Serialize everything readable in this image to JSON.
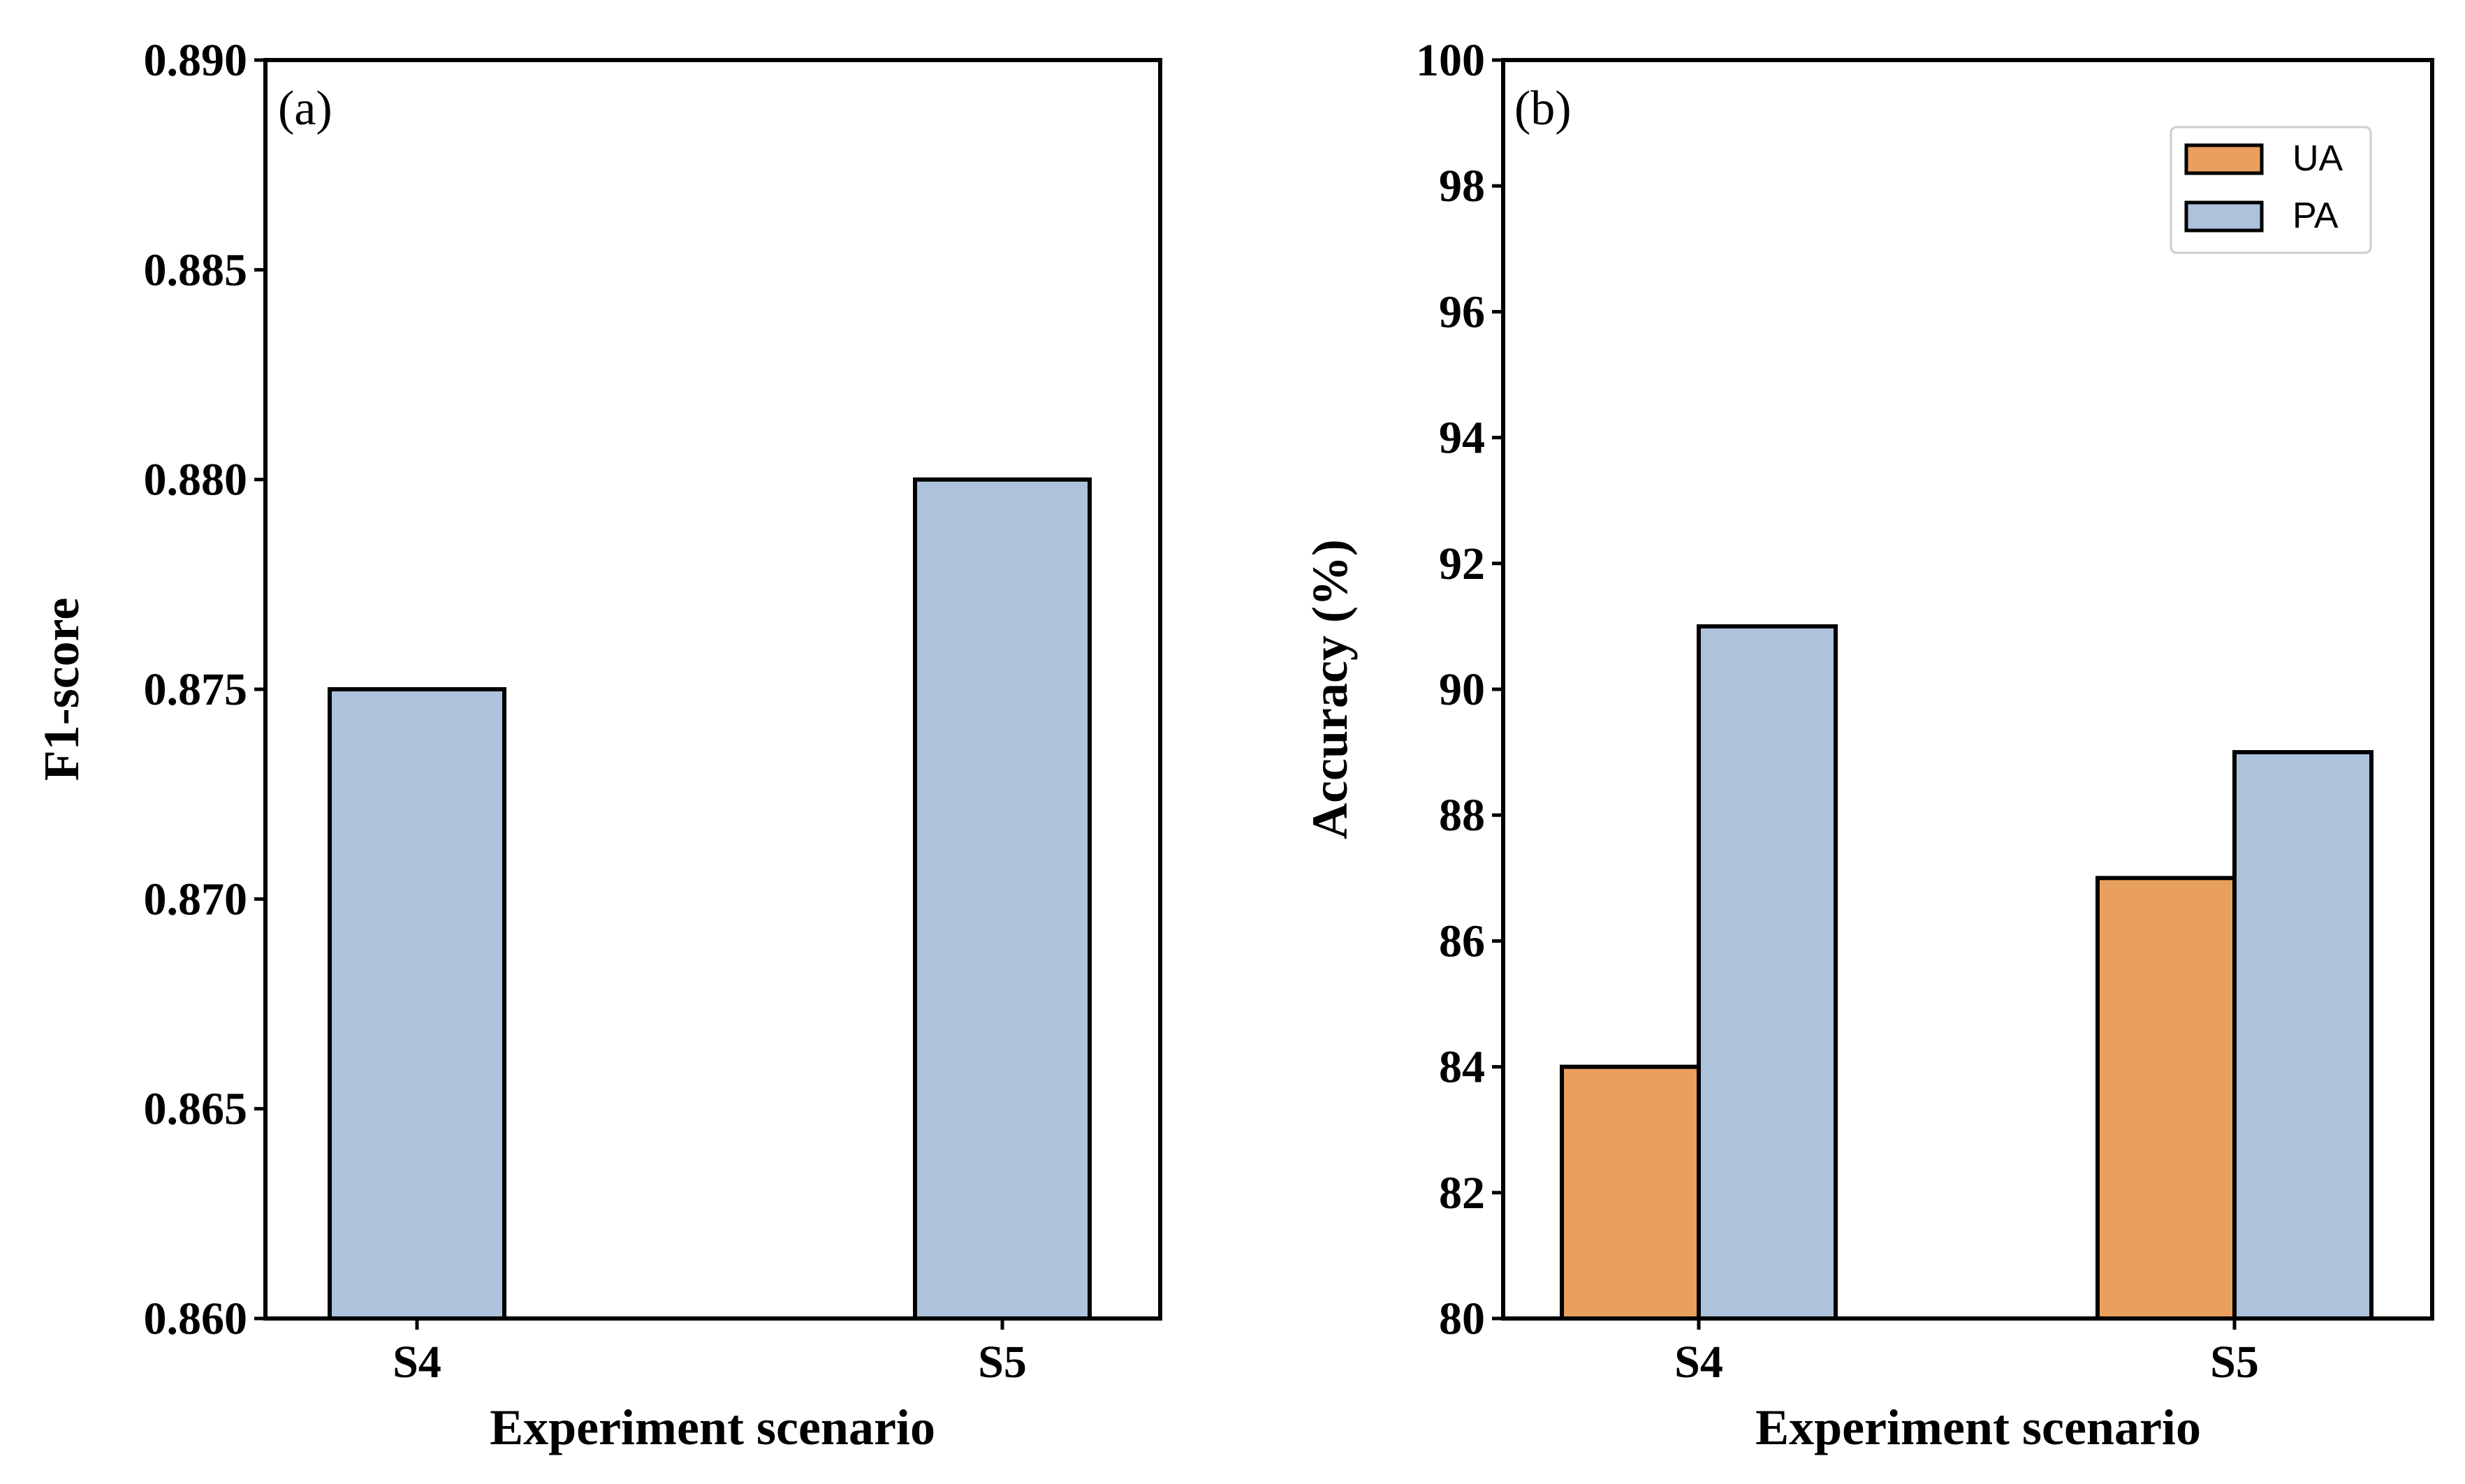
{
  "chart_data": [
    {
      "type": "bar",
      "panel_label": "(a)",
      "categories": [
        "S4",
        "S5"
      ],
      "series": [
        {
          "values": [
            0.875,
            0.88
          ],
          "color": "#adc2db"
        }
      ],
      "xlabel": "Experiment scenario",
      "ylabel": "F1-score",
      "ylim": [
        0.86,
        0.89
      ],
      "yticks": [
        "0.860",
        "0.865",
        "0.870",
        "0.875",
        "0.880",
        "0.885",
        "0.890"
      ],
      "grid": false
    },
    {
      "type": "bar",
      "panel_label": "(b)",
      "categories": [
        "S4",
        "S5"
      ],
      "series": [
        {
          "name": "UA",
          "values": [
            84,
            87
          ],
          "color": "#e99f5e"
        },
        {
          "name": "PA",
          "values": [
            91,
            89
          ],
          "color": "#adc2db"
        }
      ],
      "xlabel": "Experiment scenario",
      "ylabel": "Accuracy (%)",
      "ylim": [
        80,
        100
      ],
      "yticks": [
        "80",
        "82",
        "84",
        "86",
        "88",
        "90",
        "92",
        "94",
        "96",
        "98",
        "100"
      ],
      "legend_position": "top-right",
      "grid": false
    }
  ]
}
